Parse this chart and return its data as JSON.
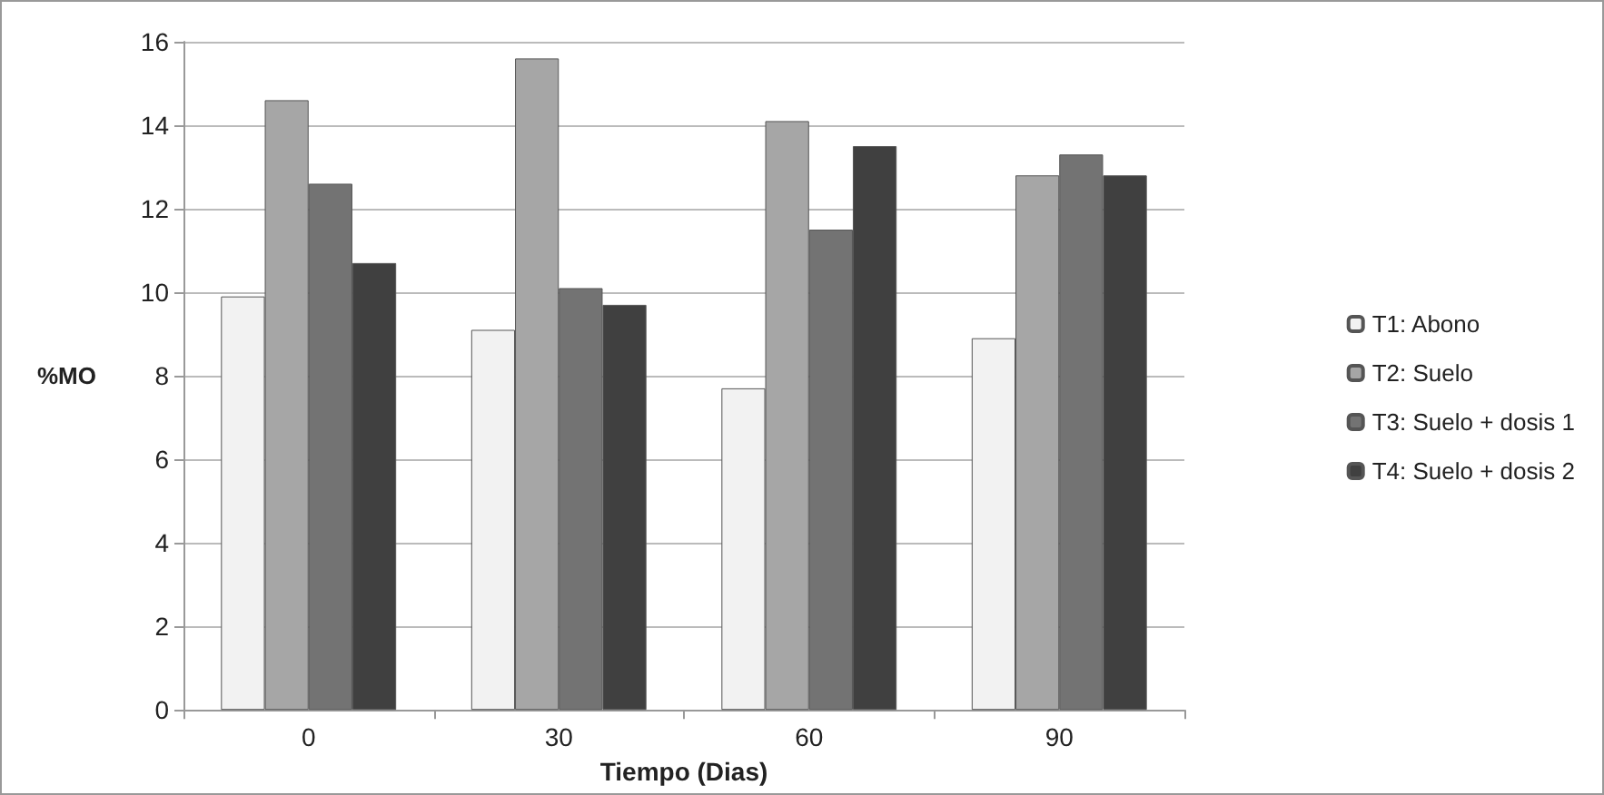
{
  "chart_data": {
    "type": "bar",
    "xlabel": "Tiempo (Dias)",
    "ylabel": "%MO",
    "categories": [
      "0",
      "30",
      "60",
      "90"
    ],
    "series": [
      {
        "name": "T1: Abono",
        "color": "#f2f2f2",
        "values": [
          9.9,
          9.1,
          7.7,
          8.9
        ]
      },
      {
        "name": "T2: Suelo",
        "color": "#a6a6a6",
        "values": [
          14.6,
          15.6,
          14.1,
          12.8
        ]
      },
      {
        "name": "T3: Suelo + dosis 1",
        "color": "#737373",
        "values": [
          12.6,
          10.1,
          11.5,
          13.3
        ]
      },
      {
        "name": "T4: Suelo + dosis 2",
        "color": "#404040",
        "values": [
          10.7,
          9.7,
          13.5,
          12.8
        ]
      }
    ],
    "ylim": [
      0,
      16
    ],
    "yticks": [
      0,
      2,
      4,
      6,
      8,
      10,
      12,
      14,
      16
    ],
    "grid": "y",
    "legend": "right"
  }
}
